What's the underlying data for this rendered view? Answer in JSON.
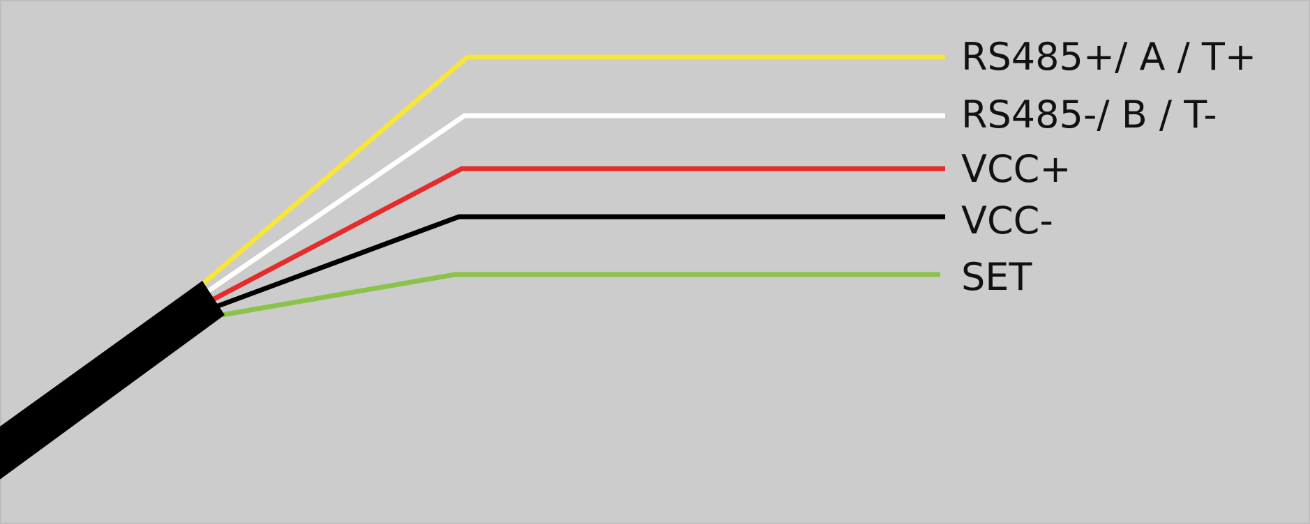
{
  "diagram": {
    "background_color": "#cccccc",
    "cable_color": "#000000",
    "wires": [
      {
        "label": "RS485+/ A / T+",
        "color": "#f7e539"
      },
      {
        "label": "RS485-/ B / T-",
        "color": "#ffffff"
      },
      {
        "label": "VCC+",
        "color": "#e52b2b"
      },
      {
        "label": "VCC-",
        "color": "#000000"
      },
      {
        "label": "SET",
        "color": "#8bc34a"
      }
    ]
  }
}
